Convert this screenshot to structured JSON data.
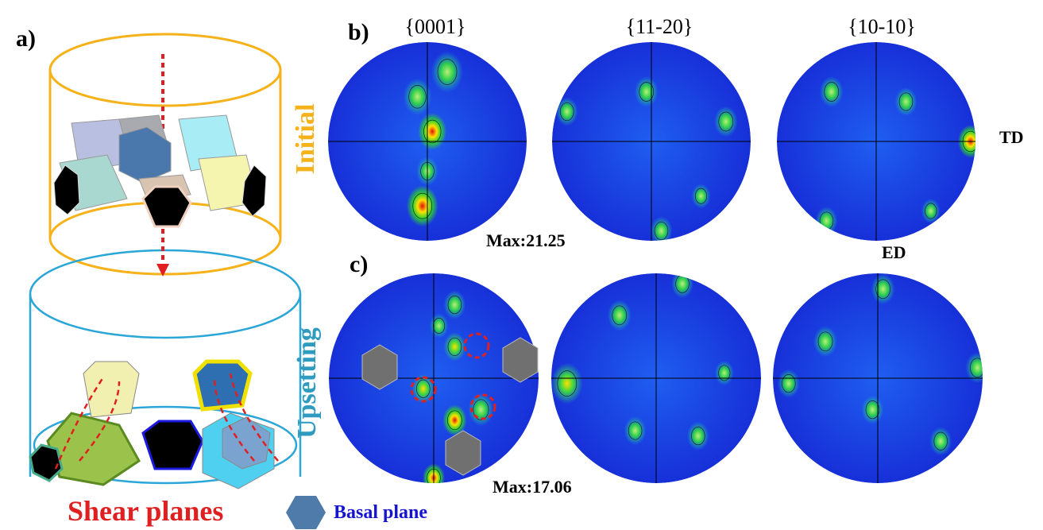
{
  "panel_a": {
    "label": "a)",
    "stages": [
      "Initial",
      "Upsetting"
    ],
    "legend": {
      "shear": "Shear planes",
      "basal": "Basal plane"
    }
  },
  "panel_b": {
    "label": "b)",
    "max": "Max:21.25"
  },
  "panel_c": {
    "label": "c)",
    "max": "Max:17.06"
  },
  "planes": [
    "{0001}",
    "{11-20}",
    "{10-10}"
  ],
  "directions": {
    "td": "TD",
    "ed": "ED"
  }
}
